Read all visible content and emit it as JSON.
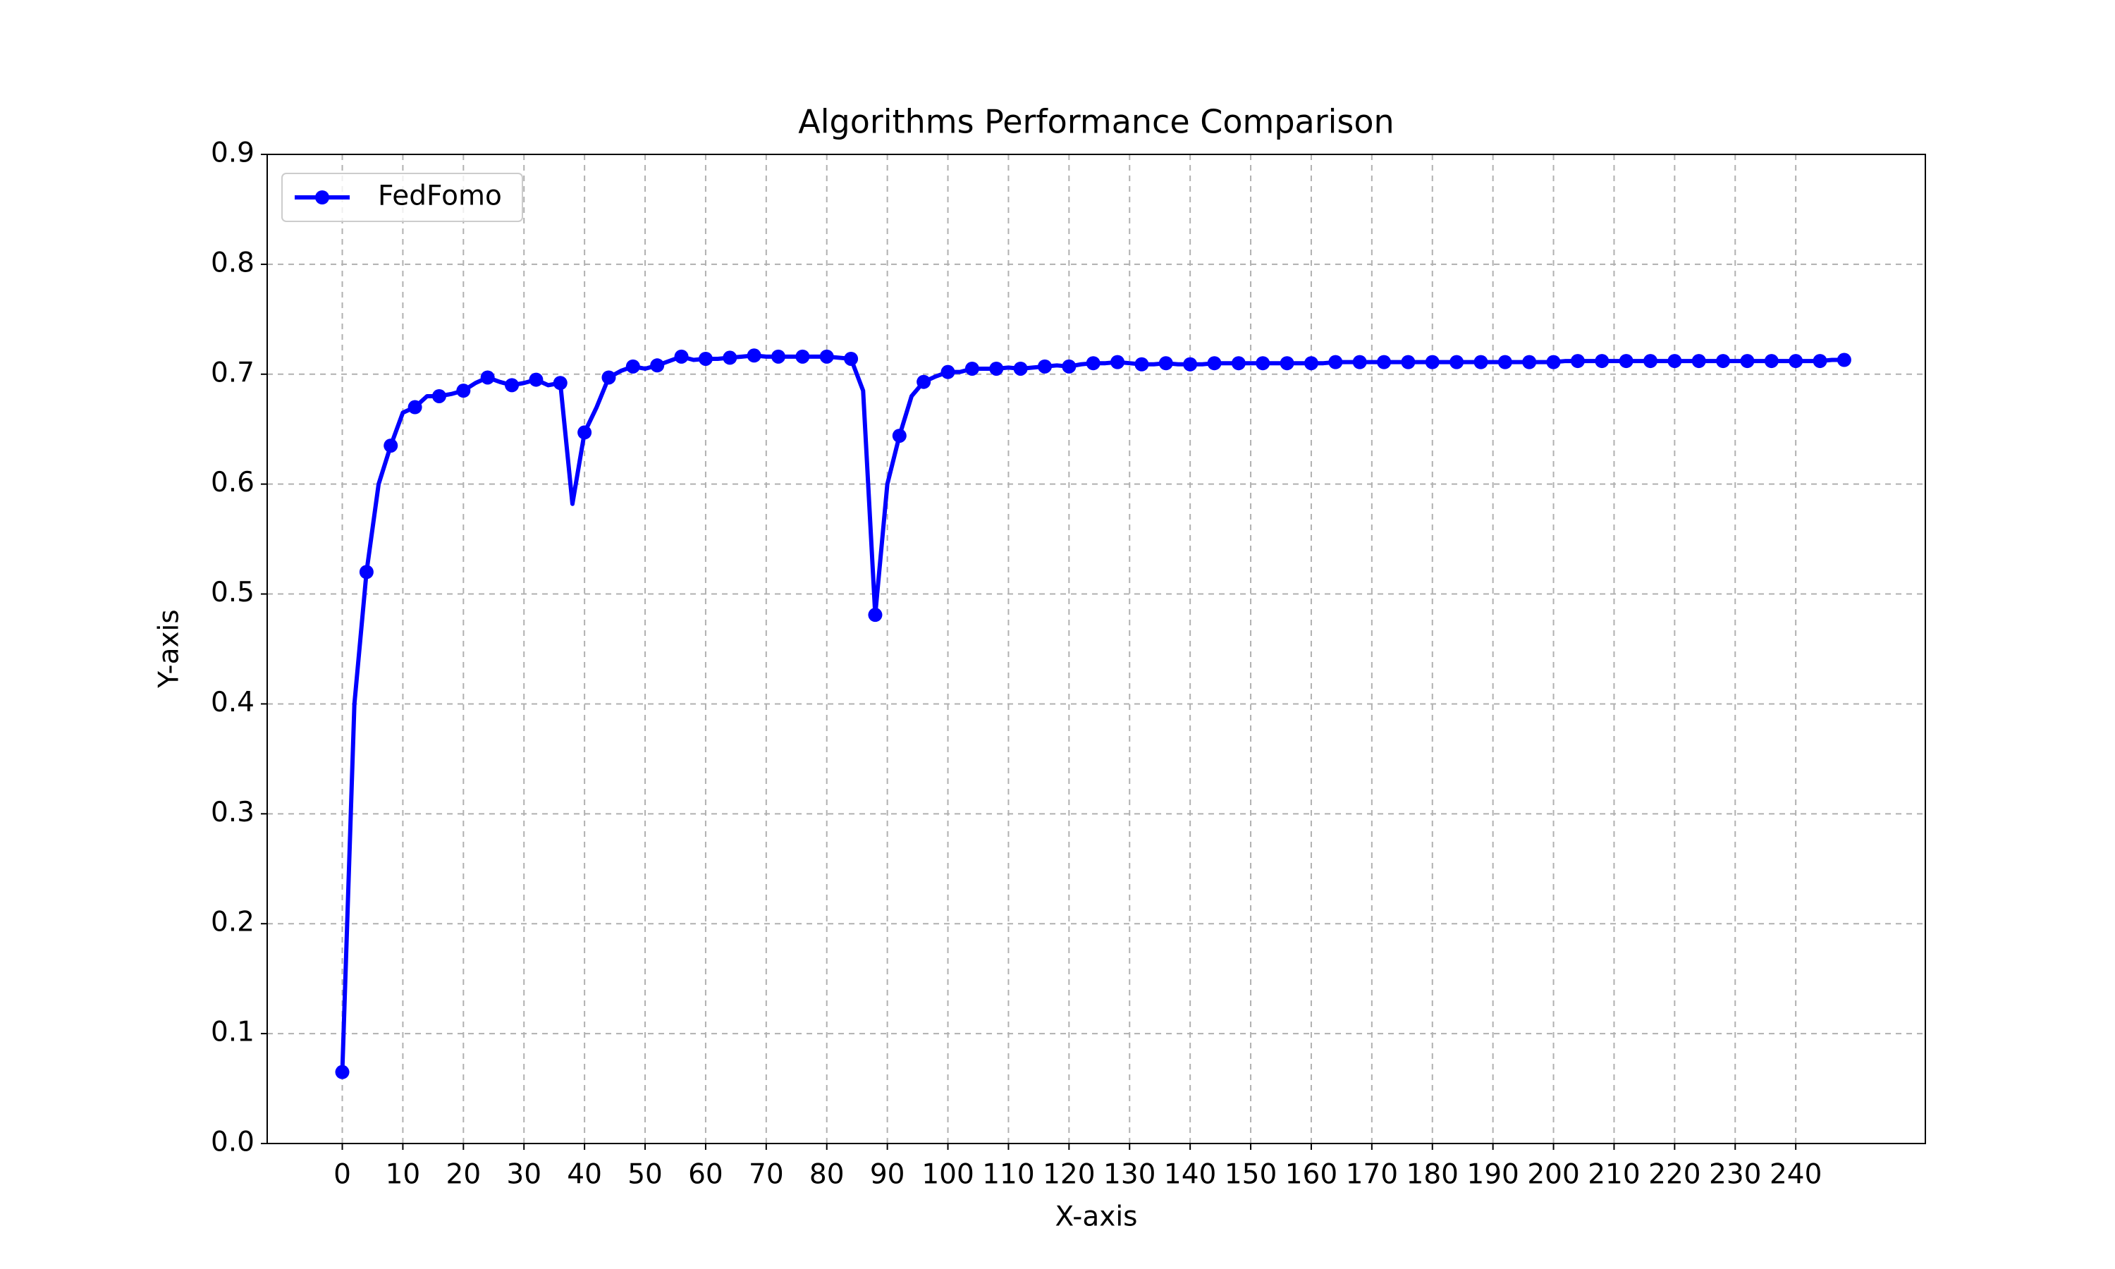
{
  "chart_data": {
    "type": "line",
    "title": "Algorithms Performance Comparison",
    "x_label": "X-axis",
    "y_label": "Y-axis",
    "x": [
      0,
      2,
      4,
      6,
      8,
      10,
      12,
      14,
      16,
      18,
      20,
      22,
      24,
      26,
      28,
      30,
      32,
      34,
      36,
      38,
      40,
      42,
      44,
      46,
      48,
      50,
      52,
      54,
      56,
      58,
      60,
      62,
      64,
      66,
      68,
      70,
      72,
      74,
      76,
      78,
      80,
      82,
      84,
      86,
      88,
      90,
      92,
      94,
      96,
      98,
      100,
      102,
      104,
      106,
      108,
      110,
      112,
      114,
      116,
      118,
      120,
      122,
      124,
      126,
      128,
      130,
      132,
      134,
      136,
      138,
      140,
      142,
      144,
      146,
      148,
      150,
      152,
      154,
      156,
      158,
      160,
      162,
      164,
      166,
      168,
      170,
      172,
      174,
      176,
      178,
      180,
      182,
      184,
      186,
      188,
      190,
      192,
      194,
      196,
      198,
      200,
      202,
      204,
      206,
      208,
      210,
      212,
      214,
      216,
      218,
      220,
      222,
      224,
      226,
      228,
      230,
      232,
      234,
      236,
      238,
      240,
      242,
      244,
      246,
      248
    ],
    "series": [
      {
        "name": "FedFomo",
        "color": "#0000ff",
        "marker_every": 2,
        "values": [
          0.065,
          0.4,
          0.52,
          0.6,
          0.635,
          0.665,
          0.67,
          0.68,
          0.68,
          0.682,
          0.685,
          0.692,
          0.697,
          0.693,
          0.69,
          0.692,
          0.695,
          0.69,
          0.692,
          0.582,
          0.647,
          0.67,
          0.697,
          0.703,
          0.707,
          0.705,
          0.708,
          0.712,
          0.716,
          0.713,
          0.714,
          0.714,
          0.715,
          0.716,
          0.717,
          0.716,
          0.716,
          0.716,
          0.716,
          0.716,
          0.716,
          0.715,
          0.714,
          0.685,
          0.481,
          0.6,
          0.644,
          0.68,
          0.693,
          0.698,
          0.702,
          0.702,
          0.705,
          0.705,
          0.705,
          0.706,
          0.705,
          0.706,
          0.707,
          0.708,
          0.707,
          0.709,
          0.71,
          0.71,
          0.711,
          0.71,
          0.709,
          0.709,
          0.71,
          0.709,
          0.709,
          0.709,
          0.71,
          0.71,
          0.71,
          0.71,
          0.71,
          0.71,
          0.71,
          0.71,
          0.71,
          0.71,
          0.711,
          0.711,
          0.711,
          0.711,
          0.711,
          0.711,
          0.711,
          0.711,
          0.711,
          0.711,
          0.711,
          0.711,
          0.711,
          0.711,
          0.711,
          0.711,
          0.711,
          0.711,
          0.711,
          0.712,
          0.712,
          0.712,
          0.712,
          0.712,
          0.712,
          0.712,
          0.712,
          0.712,
          0.712,
          0.712,
          0.712,
          0.712,
          0.712,
          0.712,
          0.712,
          0.712,
          0.712,
          0.712,
          0.712,
          0.712,
          0.712,
          0.713,
          0.713
        ]
      }
    ],
    "xlim": [
      -12.4,
      261.4
    ],
    "xticks": [
      0,
      10,
      20,
      30,
      40,
      50,
      60,
      70,
      80,
      90,
      100,
      110,
      120,
      130,
      140,
      150,
      160,
      170,
      180,
      190,
      200,
      210,
      220,
      230,
      240
    ],
    "ylim": [
      0,
      0.9
    ],
    "yticks": [
      {
        "value": 0,
        "label": "0.0"
      },
      0.1,
      0.2,
      0.3,
      0.4,
      0.5,
      0.6,
      0.7,
      0.8,
      0.9
    ],
    "grid": true,
    "legend": "upper-left"
  }
}
